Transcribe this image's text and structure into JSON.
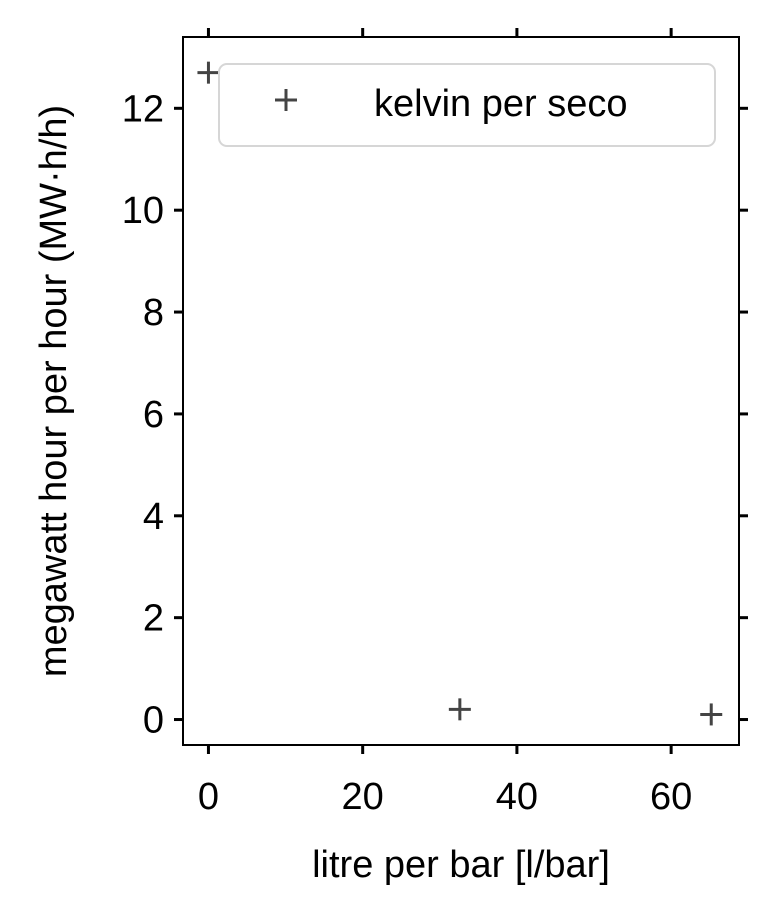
{
  "chart_data": {
    "type": "scatter",
    "xlabel": "litre per bar [l/bar]",
    "ylabel": "megawatt hour per hour (MW·h/h)",
    "xlim": [
      -3.3,
      68.8
    ],
    "ylim": [
      -0.5,
      13.4
    ],
    "xticks": [
      0,
      20,
      40,
      60
    ],
    "yticks": [
      0,
      2,
      4,
      6,
      8,
      10,
      12
    ],
    "xtick_labels": [
      "0",
      "20",
      "40",
      "60"
    ],
    "ytick_labels": [
      "0",
      "2",
      "4",
      "6",
      "8",
      "10",
      "12"
    ],
    "grid": false,
    "legend_position": "top-right",
    "series": [
      {
        "name": "kelvin per seco",
        "marker": "plus",
        "color": "#444444",
        "points": [
          {
            "x": 0,
            "y": 12.7
          },
          {
            "x": 32.6,
            "y": 0.2
          },
          {
            "x": 65.2,
            "y": 0.1
          }
        ]
      }
    ]
  }
}
